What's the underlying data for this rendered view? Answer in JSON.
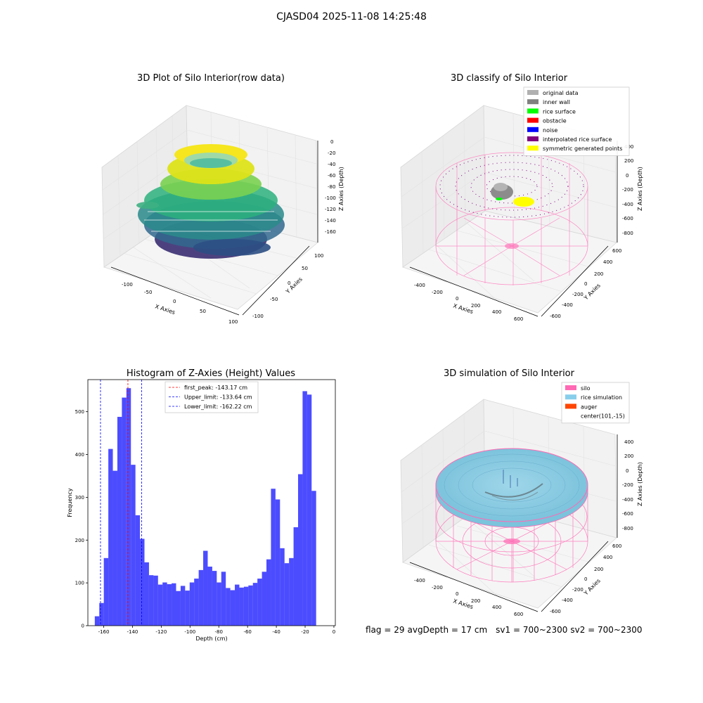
{
  "figure": {
    "suptitle": "CJASD04 2025-11-08 14:25:48",
    "status": {
      "flag": "flag = 29",
      "avg_depth": "avgDepth = 17 cm",
      "sv1": "sv1 = 700~2300",
      "sv2": "sv2 = 700~2300"
    }
  },
  "plot_raw": {
    "title": "3D Plot of Silo Interior(row data)",
    "xlabel": "X Axies",
    "ylabel": "Y Axies",
    "zlabel": "Z Axies (Depth)",
    "xticks": [
      "-100",
      "-50",
      "0",
      "50",
      "100"
    ],
    "yticks": [
      "100",
      "50",
      "0",
      "-50",
      "-100"
    ],
    "zticks": [
      "0",
      "-20",
      "-40",
      "-60",
      "-80",
      "-100",
      "-120",
      "-140",
      "-160"
    ]
  },
  "plot_classify": {
    "title": "3D classify of Silo Interior",
    "xlabel": "X Axies",
    "ylabel": "Y Axies",
    "zlabel": "Z Axies (Depth)",
    "xticks": [
      "-400",
      "-200",
      "0",
      "200",
      "400",
      "600"
    ],
    "yticks": [
      "600",
      "400",
      "200",
      "0",
      "-200",
      "-400",
      "-600"
    ],
    "zticks": [
      "400",
      "200",
      "0",
      "-200",
      "-400",
      "-600",
      "-800"
    ],
    "legend": [
      {
        "label": "original data",
        "color": "#b0b0b0"
      },
      {
        "label": "inner wall",
        "color": "#808080"
      },
      {
        "label": "rice surface",
        "color": "#00ff00"
      },
      {
        "label": "obstacle",
        "color": "#ff0000"
      },
      {
        "label": "noise",
        "color": "#0000ff"
      },
      {
        "label": "interpolated rice surface",
        "color": "#800080"
      },
      {
        "label": "symmetric generated points",
        "color": "#ffff00"
      }
    ]
  },
  "plot_sim": {
    "title": "3D simulation of Silo Interior",
    "xlabel": "X Axies",
    "ylabel": "Y Axies",
    "zlabel": "Z Axies (Depth)",
    "xticks": [
      "-400",
      "-200",
      "0",
      "200",
      "400",
      "600"
    ],
    "yticks": [
      "600",
      "400",
      "200",
      "0",
      "-200",
      "-400",
      "-600"
    ],
    "zticks": [
      "400",
      "200",
      "0",
      "-200",
      "-400",
      "-600",
      "-800"
    ],
    "legend": [
      {
        "label": "silo",
        "color": "#ff69b4"
      },
      {
        "label": "rice simulation",
        "color": "#87ceeb"
      },
      {
        "label": "auger",
        "color": "#ff4500"
      },
      {
        "label": "center(101,-15)",
        "color": null
      }
    ]
  },
  "chart_data": {
    "type": "bar",
    "title": "Histogram of Z-Axies (Height) Values",
    "xlabel": "Depth (cm)",
    "ylabel": "Frequency",
    "xlim": [
      -171,
      1
    ],
    "ylim": [
      0,
      575
    ],
    "xticks": [
      -160,
      -140,
      -120,
      -100,
      -80,
      -60,
      -40,
      -20,
      0
    ],
    "yticks": [
      0,
      100,
      200,
      300,
      400,
      500
    ],
    "bar_color": "#0000ff",
    "bin_start": -166.2,
    "bin_width": 3.14,
    "values": [
      22,
      53,
      158,
      413,
      362,
      488,
      533,
      555,
      376,
      258,
      203,
      148,
      118,
      117,
      96,
      101,
      97,
      99,
      81,
      93,
      82,
      101,
      110,
      130,
      175,
      138,
      128,
      101,
      126,
      88,
      83,
      96,
      89,
      91,
      94,
      100,
      110,
      126,
      155,
      320,
      295,
      181,
      146,
      158,
      230,
      354,
      548,
      540,
      315
    ],
    "lines": [
      {
        "label": "first_peak: -143.17 cm",
        "x": -143.17,
        "color": "#ff0000"
      },
      {
        "label": "Upper_limit: -133.64 cm",
        "x": -133.64,
        "color": "#0000ff"
      },
      {
        "label": "Lower_limit: -162.22 cm",
        "x": -162.22,
        "color": "#0000ff"
      }
    ]
  }
}
